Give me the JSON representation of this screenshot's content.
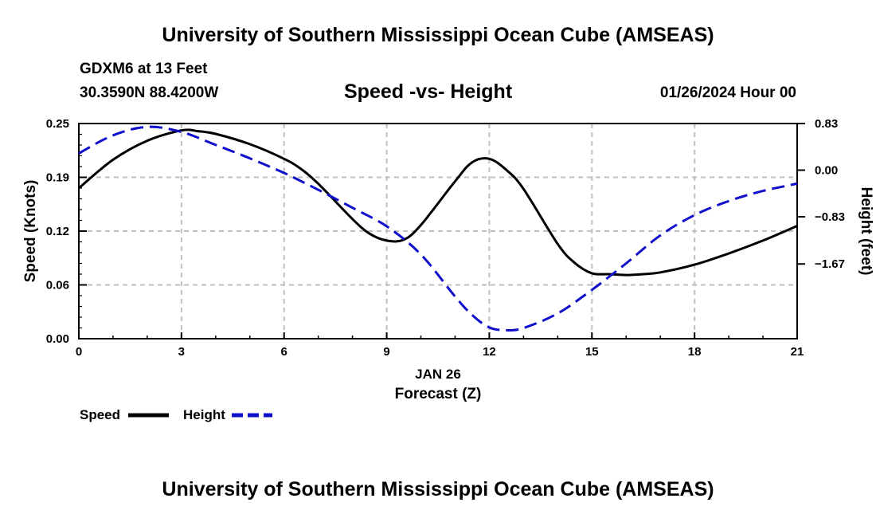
{
  "header": {
    "title": "University of Southern Mississippi Ocean Cube (AMSEAS)",
    "station": "GDXM6 at 13 Feet",
    "coords": "30.3590N  88.4200W",
    "subtitle": "Speed -vs- Height",
    "datetime": "01/26/2024 Hour 00"
  },
  "footer": {
    "title": "University of Southern Mississippi Ocean Cube (AMSEAS)"
  },
  "chart_data": {
    "type": "line",
    "title": "Speed -vs- Height",
    "xlabel": "Forecast (Z)",
    "xlabel_date": "JAN 26",
    "ylabel": "Speed (Knots)",
    "y2label": "Height (feet)",
    "xlim": [
      0,
      21
    ],
    "ylim": [
      0,
      0.25
    ],
    "y2lim": [
      -3.0,
      0.83
    ],
    "grid": true,
    "x_ticks": [
      0,
      3,
      6,
      9,
      12,
      15,
      18,
      21
    ],
    "x_tick_labels": [
      "0",
      "3",
      "6",
      "9",
      "12",
      "15",
      "18",
      "21"
    ],
    "y_ticks": [
      0,
      0.0625,
      0.125,
      0.1875,
      0.25
    ],
    "y_tick_labels": [
      "0.00",
      "0.06",
      "0.12",
      "0.19",
      "0.25"
    ],
    "y2_ticks": [
      -1.67,
      -0.83,
      0.0,
      0.83
    ],
    "y2_tick_labels": [
      "-1.67",
      "-0.83",
      "0.00",
      "0.83"
    ],
    "legend": [
      {
        "label": "Speed",
        "color": "#000000",
        "dash": "solid"
      },
      {
        "label": "Height",
        "color": "#1010cc",
        "dash": "dashed"
      }
    ],
    "series": [
      {
        "name": "Speed",
        "axis": "left",
        "color": "#000000",
        "x": [
          0,
          1,
          2,
          3,
          3.5,
          4,
          5,
          6,
          6.5,
          7,
          8,
          8.5,
          9,
          9.5,
          10,
          11,
          11.5,
          12,
          12.5,
          13,
          14,
          14.5,
          15,
          15.5,
          16,
          16.5,
          17,
          18,
          19,
          20,
          21
        ],
        "values": [
          0.175,
          0.208,
          0.23,
          0.242,
          0.241,
          0.238,
          0.226,
          0.209,
          0.197,
          0.18,
          0.139,
          0.122,
          0.114,
          0.115,
          0.132,
          0.183,
          0.205,
          0.209,
          0.196,
          0.174,
          0.11,
          0.088,
          0.076,
          0.075,
          0.074,
          0.075,
          0.077,
          0.086,
          0.099,
          0.114,
          0.131
        ]
      },
      {
        "name": "Height",
        "axis": "right",
        "color": "#1010cc",
        "x": [
          0,
          1,
          2,
          3,
          4,
          5,
          6,
          7,
          8,
          9,
          10,
          11,
          11.5,
          12,
          12.5,
          13,
          14,
          15,
          16,
          17,
          18,
          19,
          20,
          21
        ],
        "values": [
          0.3,
          0.62,
          0.77,
          0.68,
          0.45,
          0.21,
          -0.05,
          -0.35,
          -0.67,
          -1.0,
          -1.5,
          -2.25,
          -2.58,
          -2.8,
          -2.85,
          -2.81,
          -2.55,
          -2.13,
          -1.66,
          -1.16,
          -0.8,
          -0.55,
          -0.37,
          -0.24
        ]
      }
    ]
  }
}
